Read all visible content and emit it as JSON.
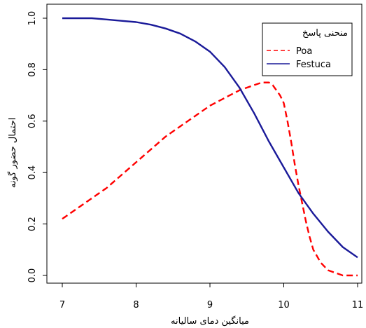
{
  "chart_data": {
    "type": "line",
    "xlabel": "میانگین دمای سالیانه",
    "ylabel": "احتمال حضور گونه",
    "xlim": [
      7,
      11
    ],
    "ylim": [
      0,
      1
    ],
    "xticks": [
      "7",
      "8",
      "9",
      "10",
      "11"
    ],
    "yticks": [
      "0.0",
      "0.2",
      "0.4",
      "0.6",
      "0.8",
      "1.0"
    ],
    "grid": false,
    "legend": {
      "title": "منحنی پاسخ",
      "position": "top-right"
    },
    "series": [
      {
        "name": "Poa",
        "color": "#ff0000",
        "line_style": "dashed",
        "x": [
          7.0,
          7.2,
          7.4,
          7.6,
          7.8,
          8.0,
          8.2,
          8.4,
          8.6,
          8.8,
          9.0,
          9.2,
          9.4,
          9.6,
          9.7,
          9.8,
          9.85,
          9.9,
          9.95,
          10.0,
          10.05,
          10.1,
          10.15,
          10.2,
          10.25,
          10.3,
          10.35,
          10.4,
          10.5,
          10.6,
          10.7,
          10.8,
          11.0
        ],
        "y": [
          0.22,
          0.26,
          0.3,
          0.34,
          0.39,
          0.44,
          0.49,
          0.54,
          0.58,
          0.62,
          0.66,
          0.69,
          0.72,
          0.74,
          0.75,
          0.75,
          0.74,
          0.72,
          0.7,
          0.67,
          0.6,
          0.52,
          0.43,
          0.35,
          0.28,
          0.21,
          0.15,
          0.1,
          0.05,
          0.02,
          0.01,
          0.0,
          0.0
        ]
      },
      {
        "name": "Festuca",
        "color": "#1a1a99",
        "line_style": "solid",
        "x": [
          7.0,
          7.2,
          7.4,
          7.6,
          7.8,
          8.0,
          8.2,
          8.4,
          8.6,
          8.8,
          9.0,
          9.2,
          9.4,
          9.6,
          9.8,
          10.0,
          10.2,
          10.4,
          10.6,
          10.8,
          11.0
        ],
        "y": [
          1.0,
          1.0,
          1.0,
          0.995,
          0.99,
          0.985,
          0.975,
          0.96,
          0.94,
          0.91,
          0.87,
          0.81,
          0.73,
          0.63,
          0.52,
          0.42,
          0.32,
          0.24,
          0.17,
          0.11,
          0.07
        ]
      }
    ]
  }
}
